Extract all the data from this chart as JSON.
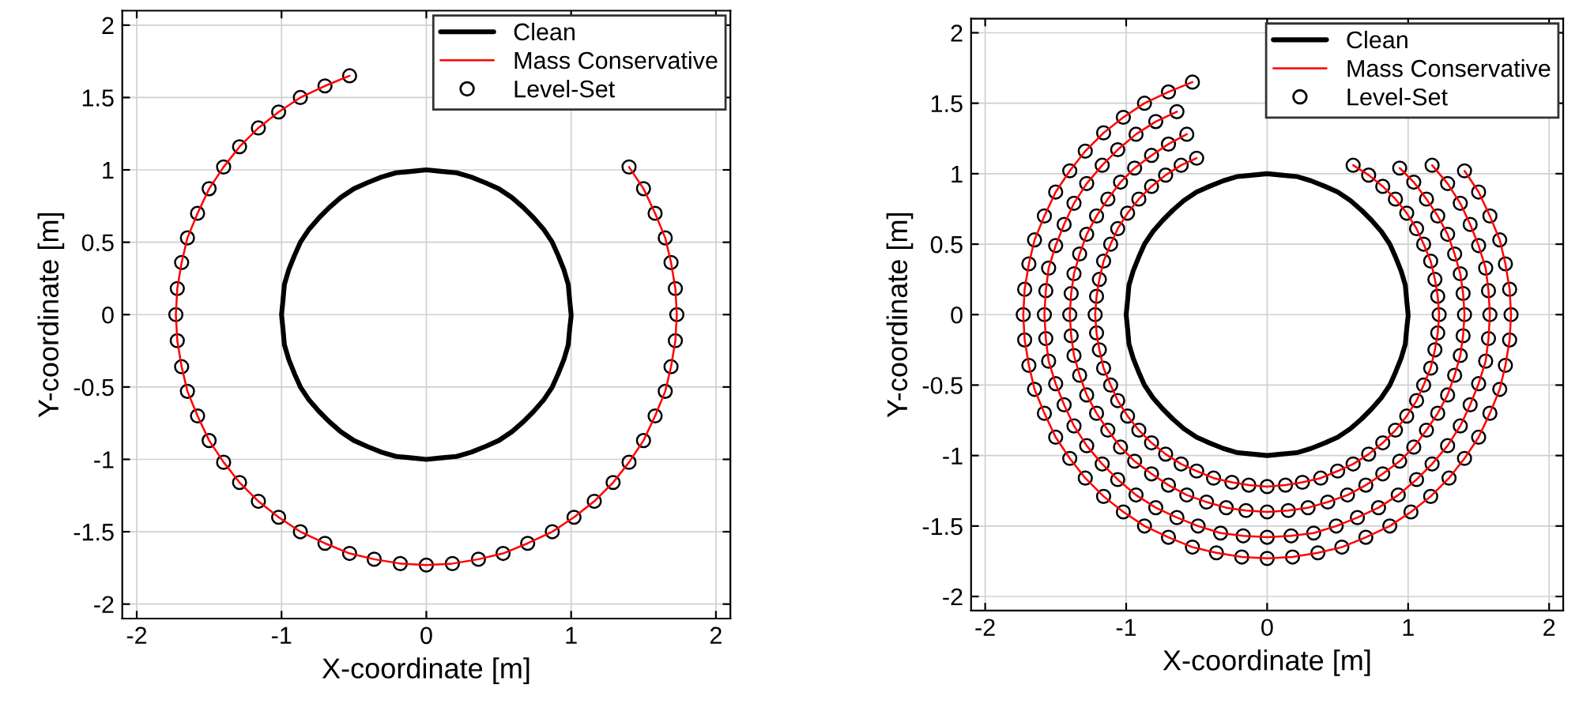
{
  "chart_data": [
    {
      "type": "line",
      "xlabel": "X-coordinate [m]",
      "ylabel": "Y-coordinate [m]",
      "xlim": [
        -2.1,
        2.1
      ],
      "ylim": [
        -2.1,
        2.1
      ],
      "xticks": [
        -2,
        -1,
        0,
        1,
        2
      ],
      "yticks": [
        -2,
        -1.5,
        -1,
        -0.5,
        0,
        0.5,
        1,
        1.5,
        2
      ],
      "grid": true,
      "legend": "top right",
      "series": [
        {
          "name": "Clean",
          "color": "#000000",
          "line_style": "solid",
          "marker": "none",
          "x": [
            1,
            0.99,
            0.98,
            0.95,
            0.91,
            0.87,
            0.81,
            0.74,
            0.67,
            0.59,
            0.5,
            0.41,
            0.31,
            0.21,
            0.1,
            0,
            -0.1,
            -0.21,
            -0.31,
            -0.41,
            -0.5,
            -0.59,
            -0.67,
            -0.74,
            -0.81,
            -0.87,
            -0.91,
            -0.95,
            -0.98,
            -0.99,
            -1,
            -0.99,
            -0.98,
            -0.95,
            -0.91,
            -0.87,
            -0.81,
            -0.74,
            -0.67,
            -0.59,
            -0.5,
            -0.41,
            -0.31,
            -0.21,
            -0.1,
            0,
            0.1,
            0.21,
            0.31,
            0.41,
            0.5,
            0.59,
            0.67,
            0.74,
            0.81,
            0.87,
            0.91,
            0.95,
            0.98,
            0.99,
            1
          ],
          "values": [
            0,
            0.1,
            0.21,
            0.31,
            0.41,
            0.5,
            0.59,
            0.67,
            0.74,
            0.81,
            0.87,
            0.91,
            0.95,
            0.98,
            0.99,
            1,
            0.99,
            0.98,
            0.95,
            0.91,
            0.87,
            0.81,
            0.74,
            0.67,
            0.59,
            0.5,
            0.41,
            0.31,
            0.21,
            0.1,
            0,
            -0.1,
            -0.21,
            -0.31,
            -0.41,
            -0.5,
            -0.59,
            -0.67,
            -0.74,
            -0.81,
            -0.87,
            -0.91,
            -0.95,
            -0.98,
            -0.99,
            -1,
            -0.99,
            -0.98,
            -0.95,
            -0.91,
            -0.87,
            -0.81,
            -0.74,
            -0.67,
            -0.59,
            -0.5,
            -0.41,
            -0.31,
            -0.21,
            -0.1,
            -0.01
          ]
        },
        {
          "name": "Mass Conservative",
          "color": "#ff0000",
          "line_style": "solid",
          "marker": "none",
          "x": [
            1.73,
            1.72,
            1.69,
            1.65,
            1.58,
            1.5,
            1.4,
            1.29,
            1.16,
            1.02,
            0.87,
            0.7,
            0.53,
            0.36,
            0.18,
            0,
            -0.18,
            -0.36,
            -0.53,
            -0.7,
            -0.87,
            -1.02,
            -1.16,
            -1.29,
            -1.4,
            -1.5,
            -1.58,
            -1.65,
            -1.69,
            -1.72,
            -1.73,
            -1.72,
            -1.69,
            -1.65,
            -1.58,
            -1.5,
            -1.4,
            -1.29,
            -1.16,
            -1.02,
            -0.87,
            -0.7,
            -0.53,
            -0.36,
            -0.18,
            0,
            0.18,
            0.36,
            0.53,
            0.7,
            0.87,
            1.02,
            1.16,
            1.29,
            1.4,
            1.5,
            1.58,
            1.65,
            1.69,
            1.72,
            1.73
          ],
          "values": [
            0,
            0.18,
            0.36,
            0.53,
            0.7,
            0.87,
            1.02,
            null,
            null,
            null,
            null,
            null,
            null,
            null,
            null,
            null,
            null,
            null,
            1.65,
            1.58,
            1.5,
            1.4,
            1.29,
            1.16,
            1.02,
            0.87,
            0.7,
            0.53,
            0.36,
            0.18,
            0,
            -0.18,
            -0.36,
            -0.53,
            -0.7,
            -0.87,
            -1.02,
            -1.16,
            -1.29,
            -1.4,
            -1.5,
            -1.58,
            -1.65,
            -1.69,
            -1.72,
            -1.73,
            -1.72,
            -1.69,
            -1.65,
            -1.58,
            -1.5,
            -1.4,
            -1.29,
            -1.16,
            -1.02,
            -0.87,
            -0.7,
            -0.53,
            -0.36,
            -0.18,
            0
          ]
        },
        {
          "name": "Level-Set",
          "type": "scatter",
          "color": "#000000",
          "marker": "circle",
          "x": [
            1.73,
            1.72,
            1.69,
            1.65,
            1.58,
            1.5,
            1.4,
            1.29,
            1.16,
            1.02,
            0.87,
            0.7,
            0.53,
            0.36,
            0.18,
            0,
            -0.18,
            -0.36,
            -0.53,
            -0.7,
            -0.87,
            -1.02,
            -1.16,
            -1.29,
            -1.4,
            -1.5,
            -1.58,
            -1.65,
            -1.69,
            -1.72,
            -1.73,
            -1.72,
            -1.69,
            -1.65,
            -1.58,
            -1.5,
            -1.4,
            -1.29,
            -1.16,
            -1.02,
            -0.87,
            -0.7,
            -0.53,
            -0.36,
            -0.18,
            0,
            0.18,
            0.36,
            0.53,
            0.7,
            0.87,
            1.02,
            1.16,
            1.29,
            1.4,
            1.5,
            1.58,
            1.65,
            1.69,
            1.72
          ],
          "values": [
            0,
            0.18,
            0.36,
            0.53,
            0.7,
            0.87,
            1.02,
            null,
            null,
            null,
            null,
            null,
            null,
            null,
            null,
            null,
            null,
            null,
            1.65,
            1.58,
            1.5,
            1.4,
            1.29,
            1.16,
            1.02,
            0.87,
            0.7,
            0.53,
            0.36,
            0.18,
            0,
            -0.18,
            -0.36,
            -0.53,
            -0.7,
            -0.87,
            -1.02,
            -1.16,
            -1.29,
            -1.4,
            -1.5,
            -1.58,
            -1.65,
            -1.69,
            -1.72,
            -1.73,
            -1.72,
            -1.69,
            -1.65,
            -1.58,
            -1.5,
            -1.4,
            -1.29,
            -1.16,
            -1.02,
            -0.87,
            -0.7,
            -0.53,
            -0.36,
            -0.18
          ]
        }
      ]
    },
    {
      "type": "line",
      "xlabel": "X-coordinate [m]",
      "ylabel": "Y-coordinate [m]",
      "xlim": [
        -2.1,
        2.1
      ],
      "ylim": [
        -2.1,
        2.1
      ],
      "xticks": [
        -2,
        -1,
        0,
        1,
        2
      ],
      "yticks": [
        -2,
        -1.5,
        -1,
        -0.5,
        0,
        0.5,
        1,
        1.5,
        2
      ],
      "grid": true,
      "legend": "top right",
      "series": [
        {
          "name": "Clean",
          "color": "#000000",
          "line_style": "solid",
          "marker": "none",
          "x": [
            1,
            0.99,
            0.98,
            0.95,
            0.91,
            0.87,
            0.81,
            0.74,
            0.67,
            0.59,
            0.5,
            0.41,
            0.31,
            0.21,
            0.1,
            0,
            -0.1,
            -0.21,
            -0.31,
            -0.41,
            -0.5,
            -0.59,
            -0.67,
            -0.74,
            -0.81,
            -0.87,
            -0.91,
            -0.95,
            -0.98,
            -0.99,
            -1,
            -0.99,
            -0.98,
            -0.95,
            -0.91,
            -0.87,
            -0.81,
            -0.74,
            -0.67,
            -0.59,
            -0.5,
            -0.41,
            -0.31,
            -0.21,
            -0.1,
            0,
            0.1,
            0.21,
            0.31,
            0.41,
            0.5,
            0.59,
            0.67,
            0.74,
            0.81,
            0.87,
            0.91,
            0.95,
            0.98,
            0.99,
            1
          ],
          "values": [
            0,
            0.1,
            0.21,
            0.31,
            0.41,
            0.5,
            0.59,
            0.67,
            0.74,
            0.81,
            0.87,
            0.91,
            0.95,
            0.98,
            0.99,
            1,
            0.99,
            0.98,
            0.95,
            0.91,
            0.87,
            0.81,
            0.74,
            0.67,
            0.59,
            0.5,
            0.41,
            0.31,
            0.21,
            0.1,
            0,
            -0.1,
            -0.21,
            -0.31,
            -0.41,
            -0.5,
            -0.59,
            -0.67,
            -0.74,
            -0.81,
            -0.87,
            -0.91,
            -0.95,
            -0.98,
            -0.99,
            -1,
            -0.99,
            -0.98,
            -0.95,
            -0.91,
            -0.87,
            -0.81,
            -0.74,
            -0.67,
            -0.59,
            -0.5,
            -0.41,
            -0.31,
            -0.21,
            -0.1,
            -0.01
          ]
        },
        {
          "name": "Mass Conservative",
          "color": "#ff0000",
          "line_style": "solid",
          "marker": "none",
          "x": [
            1.22,
            1.21,
            1.19,
            1.16,
            1.11,
            1.06,
            0.99,
            0.91,
            0.82,
            0.72,
            0.61,
            0.5,
            0.38,
            0.25,
            0.13,
            0,
            -0.13,
            -0.25,
            -0.38,
            -0.5,
            -0.61,
            -0.72,
            -0.82,
            -0.91,
            -0.99,
            -1.06,
            -1.11,
            -1.16,
            -1.19,
            -1.21,
            -1.22,
            -1.21,
            -1.19,
            -1.16,
            -1.11,
            -1.06,
            -0.99,
            -0.91,
            -0.82,
            -0.72,
            -0.61,
            -0.5,
            -0.38,
            -0.25,
            -0.13,
            0,
            0.13,
            0.25,
            0.38,
            0.5,
            0.61,
            0.72,
            0.82,
            0.91,
            0.99,
            1.06,
            1.11,
            1.16,
            1.19,
            1.21,
            1.22,
            null,
            1.4,
            1.39,
            1.37,
            1.33,
            1.28,
            1.21,
            1.13,
            1.04,
            0.94,
            0.82,
            0.7,
            0.57,
            0.43,
            0.29,
            0.15,
            0,
            -0.15,
            -0.29,
            -0.43,
            -0.57,
            -0.7,
            -0.82,
            -0.94,
            -1.04,
            -1.13,
            -1.21,
            -1.28,
            -1.33,
            -1.37,
            -1.39,
            -1.4,
            -1.39,
            -1.37,
            -1.33,
            -1.28,
            -1.21,
            -1.13,
            -1.04,
            -0.94,
            -0.82,
            -0.7,
            -0.57,
            -0.43,
            -0.29,
            -0.15,
            0,
            0.15,
            0.29,
            0.43,
            0.57,
            0.7,
            0.82,
            0.94,
            1.04,
            1.13,
            1.21,
            1.28,
            1.33,
            1.37,
            1.39,
            1.4,
            null,
            1.58,
            1.57,
            1.55,
            1.5,
            1.44,
            1.37,
            1.28,
            1.17,
            1.06,
            0.93,
            0.79,
            0.64,
            0.49,
            0.33,
            0.17,
            0,
            -0.17,
            -0.33,
            -0.49,
            -0.64,
            -0.79,
            -0.93,
            -1.06,
            -1.17,
            -1.28,
            -1.37,
            -1.44,
            -1.5,
            -1.55,
            -1.57,
            -1.58,
            -1.57,
            -1.55,
            -1.5,
            -1.44,
            -1.37,
            -1.28,
            -1.17,
            -1.06,
            -0.93,
            -0.79,
            -0.64,
            -0.49,
            -0.33,
            -0.17,
            0,
            0.17,
            0.33,
            0.49,
            0.64,
            0.79,
            0.93,
            1.06,
            1.17,
            1.28,
            1.37,
            1.44,
            1.5,
            1.55,
            1.57,
            1.58,
            null,
            1.73,
            1.72,
            1.69,
            1.65,
            1.58,
            1.5,
            1.4,
            1.29,
            1.16,
            1.02,
            0.87,
            0.7,
            0.53,
            0.36,
            0.18,
            0,
            -0.18,
            -0.36,
            -0.53,
            -0.7,
            -0.87,
            -1.02,
            -1.16,
            -1.29,
            -1.4,
            -1.5,
            -1.58,
            -1.65,
            -1.69,
            -1.72,
            -1.73,
            -1.72,
            -1.69,
            -1.65,
            -1.58,
            -1.5,
            -1.4,
            -1.29,
            -1.16,
            -1.02,
            -0.87,
            -0.7,
            -0.53,
            -0.36,
            -0.18,
            0,
            0.18,
            0.36,
            0.53,
            0.7,
            0.87,
            1.02,
            1.16,
            1.29,
            1.4,
            1.5,
            1.58,
            1.65,
            1.69,
            1.72,
            1.73
          ],
          "values": [
            0,
            0.13,
            0.25,
            0.38,
            0.5,
            0.61,
            0.72,
            0.82,
            0.91,
            0.99,
            1.06,
            null,
            null,
            null,
            null,
            null,
            null,
            null,
            null,
            1.11,
            1.06,
            0.99,
            0.91,
            0.82,
            0.72,
            0.61,
            0.5,
            0.38,
            0.25,
            0.13,
            0,
            -0.13,
            -0.25,
            -0.38,
            -0.5,
            -0.61,
            -0.72,
            -0.82,
            -0.91,
            -0.99,
            -1.06,
            -1.11,
            -1.16,
            -1.19,
            -1.21,
            -1.22,
            -1.21,
            -1.19,
            -1.16,
            -1.11,
            -1.06,
            -0.99,
            -0.91,
            -0.82,
            -0.72,
            -0.61,
            -0.5,
            -0.38,
            -0.25,
            -0.13,
            0,
            null,
            0,
            0.15,
            0.29,
            0.43,
            0.57,
            0.7,
            0.82,
            0.94,
            1.04,
            null,
            null,
            null,
            null,
            null,
            null,
            null,
            null,
            null,
            null,
            1.28,
            1.21,
            1.13,
            1.04,
            0.94,
            0.82,
            0.7,
            0.57,
            0.43,
            0.29,
            0.15,
            0,
            -0.15,
            -0.29,
            -0.43,
            -0.57,
            -0.7,
            -0.82,
            -0.94,
            -1.04,
            -1.13,
            -1.21,
            -1.28,
            -1.33,
            -1.37,
            -1.39,
            -1.4,
            -1.39,
            -1.37,
            -1.33,
            -1.28,
            -1.21,
            -1.13,
            -1.04,
            -0.94,
            -0.82,
            -0.7,
            -0.57,
            -0.43,
            -0.29,
            -0.15,
            0,
            null,
            0,
            0.17,
            0.33,
            0.49,
            0.64,
            0.79,
            0.93,
            1.06,
            null,
            null,
            null,
            null,
            null,
            null,
            null,
            null,
            null,
            null,
            null,
            1.44,
            1.37,
            1.28,
            1.17,
            1.06,
            0.93,
            0.79,
            0.64,
            0.49,
            0.33,
            0.17,
            0,
            -0.17,
            -0.33,
            -0.49,
            -0.64,
            -0.79,
            -0.93,
            -1.06,
            -1.17,
            -1.28,
            -1.37,
            -1.44,
            -1.5,
            -1.55,
            -1.57,
            -1.58,
            -1.57,
            -1.55,
            -1.5,
            -1.44,
            -1.37,
            -1.28,
            -1.17,
            -1.06,
            -0.93,
            -0.79,
            -0.64,
            -0.49,
            -0.33,
            -0.17,
            0,
            null,
            0,
            0.18,
            0.36,
            0.53,
            0.7,
            0.87,
            1.02,
            null,
            null,
            null,
            null,
            null,
            null,
            null,
            null,
            null,
            null,
            null,
            1.65,
            1.58,
            1.5,
            1.4,
            1.29,
            1.16,
            1.02,
            0.87,
            0.7,
            0.53,
            0.36,
            0.18,
            0,
            -0.18,
            -0.36,
            -0.53,
            -0.7,
            -0.87,
            -1.02,
            -1.16,
            -1.29,
            -1.4,
            -1.5,
            -1.58,
            -1.65,
            -1.69,
            -1.72,
            -1.73,
            -1.72,
            -1.69,
            -1.65,
            -1.58,
            -1.5,
            -1.4,
            -1.29,
            -1.16,
            -1.02,
            -0.87,
            -0.7,
            -0.53,
            -0.36,
            -0.18,
            0
          ]
        },
        {
          "name": "Level-Set",
          "type": "scatter",
          "color": "#000000",
          "marker": "circle",
          "x": [
            1.22,
            1.21,
            1.19,
            1.16,
            1.11,
            1.06,
            0.99,
            0.91,
            0.82,
            0.72,
            0.61,
            0.5,
            0.38,
            0.25,
            0.13,
            0,
            -0.13,
            -0.25,
            -0.38,
            -0.5,
            -0.61,
            -0.72,
            -0.82,
            -0.91,
            -0.99,
            -1.06,
            -1.11,
            -1.16,
            -1.19,
            -1.21,
            -1.22,
            -1.21,
            -1.19,
            -1.16,
            -1.11,
            -1.06,
            -0.99,
            -0.91,
            -0.82,
            -0.72,
            -0.61,
            -0.5,
            -0.38,
            -0.25,
            -0.13,
            0,
            0.13,
            0.25,
            0.38,
            0.5,
            0.61,
            0.72,
            0.82,
            0.91,
            0.99,
            1.06,
            1.11,
            1.16,
            1.19,
            1.21,
            1.4,
            1.39,
            1.37,
            1.33,
            1.28,
            1.21,
            1.13,
            1.04,
            0.94,
            0.82,
            0.7,
            0.57,
            0.43,
            0.29,
            0.15,
            0,
            -0.15,
            -0.29,
            -0.43,
            -0.57,
            -0.7,
            -0.82,
            -0.94,
            -1.04,
            -1.13,
            -1.21,
            -1.28,
            -1.33,
            -1.37,
            -1.39,
            -1.4,
            -1.39,
            -1.37,
            -1.33,
            -1.28,
            -1.21,
            -1.13,
            -1.04,
            -0.94,
            -0.82,
            -0.7,
            -0.57,
            -0.43,
            -0.29,
            -0.15,
            0,
            0.15,
            0.29,
            0.43,
            0.57,
            0.7,
            0.82,
            0.94,
            1.04,
            1.13,
            1.21,
            1.28,
            1.33,
            1.37,
            1.39,
            1.58,
            1.57,
            1.55,
            1.5,
            1.44,
            1.37,
            1.28,
            1.17,
            1.06,
            0.93,
            0.79,
            0.64,
            0.49,
            0.33,
            0.17,
            0,
            -0.17,
            -0.33,
            -0.49,
            -0.64,
            -0.79,
            -0.93,
            -1.06,
            -1.17,
            -1.28,
            -1.37,
            -1.44,
            -1.5,
            -1.55,
            -1.57,
            -1.58,
            -1.57,
            -1.55,
            -1.5,
            -1.44,
            -1.37,
            -1.28,
            -1.17,
            -1.06,
            -0.93,
            -0.79,
            -0.64,
            -0.49,
            -0.33,
            -0.17,
            0,
            0.17,
            0.33,
            0.49,
            0.64,
            0.79,
            0.93,
            1.06,
            1.17,
            1.28,
            1.37,
            1.44,
            1.5,
            1.55,
            1.57,
            1.73,
            1.72,
            1.69,
            1.65,
            1.58,
            1.5,
            1.4,
            1.29,
            1.16,
            1.02,
            0.87,
            0.7,
            0.53,
            0.36,
            0.18,
            0,
            -0.18,
            -0.36,
            -0.53,
            -0.7,
            -0.87,
            -1.02,
            -1.16,
            -1.29,
            -1.4,
            -1.5,
            -1.58,
            -1.65,
            -1.69,
            -1.72,
            -1.73,
            -1.72,
            -1.69,
            -1.65,
            -1.58,
            -1.5,
            -1.4,
            -1.29,
            -1.16,
            -1.02,
            -0.87,
            -0.7,
            -0.53,
            -0.36,
            -0.18,
            0,
            0.18,
            0.36,
            0.53,
            0.7,
            0.87,
            1.02,
            1.16,
            1.29,
            1.4,
            1.5,
            1.58,
            1.65,
            1.69,
            1.72
          ],
          "values": [
            0,
            0.13,
            0.25,
            0.38,
            0.5,
            0.61,
            0.72,
            0.82,
            0.91,
            0.99,
            1.06,
            null,
            null,
            null,
            null,
            null,
            null,
            null,
            null,
            1.11,
            1.06,
            0.99,
            0.91,
            0.82,
            0.72,
            0.61,
            0.5,
            0.38,
            0.25,
            0.13,
            0,
            -0.13,
            -0.25,
            -0.38,
            -0.5,
            -0.61,
            -0.72,
            -0.82,
            -0.91,
            -0.99,
            -1.06,
            -1.11,
            -1.16,
            -1.19,
            -1.21,
            -1.22,
            -1.21,
            -1.19,
            -1.16,
            -1.11,
            -1.06,
            -0.99,
            -0.91,
            -0.82,
            -0.72,
            -0.61,
            -0.5,
            -0.38,
            -0.25,
            -0.13,
            0,
            0.15,
            0.29,
            0.43,
            0.57,
            0.7,
            0.82,
            0.94,
            1.04,
            null,
            null,
            null,
            null,
            null,
            null,
            null,
            null,
            null,
            null,
            1.28,
            1.21,
            1.13,
            1.04,
            0.94,
            0.82,
            0.7,
            0.57,
            0.43,
            0.29,
            0.15,
            0,
            -0.15,
            -0.29,
            -0.43,
            -0.57,
            -0.7,
            -0.82,
            -0.94,
            -1.04,
            -1.13,
            -1.21,
            -1.28,
            -1.33,
            -1.37,
            -1.39,
            -1.4,
            -1.39,
            -1.37,
            -1.33,
            -1.28,
            -1.21,
            -1.13,
            -1.04,
            -0.94,
            -0.82,
            -0.7,
            -0.57,
            -0.43,
            -0.29,
            -0.15,
            0,
            0.17,
            0.33,
            0.49,
            0.64,
            0.79,
            0.93,
            1.06,
            null,
            null,
            null,
            null,
            null,
            null,
            null,
            null,
            null,
            null,
            null,
            1.44,
            1.37,
            1.28,
            1.17,
            1.06,
            0.93,
            0.79,
            0.64,
            0.49,
            0.33,
            0.17,
            0,
            -0.17,
            -0.33,
            -0.49,
            -0.64,
            -0.79,
            -0.93,
            -1.06,
            -1.17,
            -1.28,
            -1.37,
            -1.44,
            -1.5,
            -1.55,
            -1.57,
            -1.58,
            -1.57,
            -1.55,
            -1.5,
            -1.44,
            -1.37,
            -1.28,
            -1.17,
            -1.06,
            -0.93,
            -0.79,
            -0.64,
            -0.49,
            -0.33,
            -0.17,
            0,
            0.18,
            0.36,
            0.53,
            0.7,
            0.87,
            1.02,
            null,
            null,
            null,
            null,
            null,
            null,
            null,
            null,
            null,
            null,
            null,
            1.65,
            1.58,
            1.5,
            1.4,
            1.29,
            1.16,
            1.02,
            0.87,
            0.7,
            0.53,
            0.36,
            0.18,
            0,
            -0.18,
            -0.36,
            -0.53,
            -0.7,
            -0.87,
            -1.02,
            -1.16,
            -1.29,
            -1.4,
            -1.5,
            -1.58,
            -1.65,
            -1.69,
            -1.72,
            -1.73,
            -1.72,
            -1.69,
            -1.65,
            -1.58,
            -1.5,
            -1.4,
            -1.29,
            -1.16,
            -1.02,
            -0.87,
            -0.7,
            -0.53,
            -0.36,
            -0.18
          ]
        }
      ]
    }
  ]
}
